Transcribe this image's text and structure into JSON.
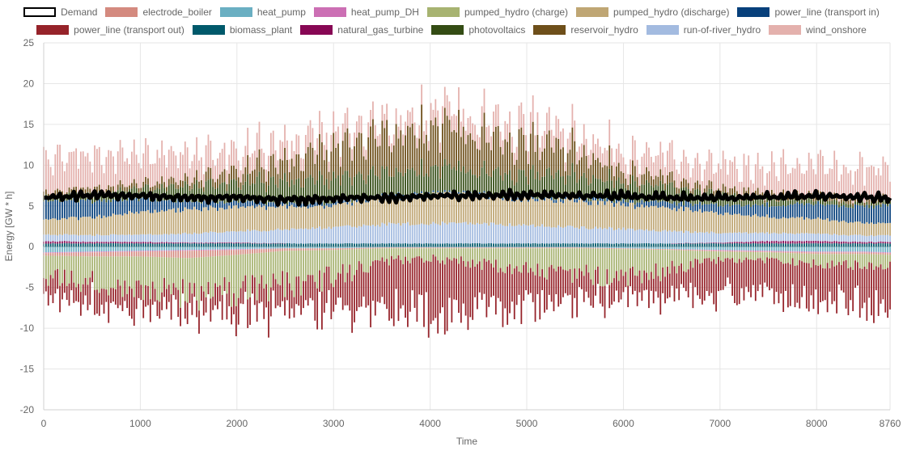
{
  "chart_data": {
    "type": "bar",
    "stacked": true,
    "xlabel": "Time",
    "ylabel": "Energy [GW * h]",
    "xlim": [
      0,
      8760
    ],
    "ylim": [
      -20,
      25
    ],
    "x_ticks": [
      "0",
      "1000",
      "2000",
      "3000",
      "4000",
      "5000",
      "6000",
      "7000",
      "8000",
      "8760"
    ],
    "y_ticks": [
      "25",
      "20",
      "15",
      "10",
      "5",
      "0",
      "-5",
      "-10",
      "-15",
      "-20"
    ],
    "grid": true,
    "legend_position": "top",
    "sample_times": [
      0,
      500,
      1000,
      1500,
      2000,
      2500,
      3000,
      3500,
      4000,
      4500,
      5000,
      5500,
      6000,
      6500,
      7000,
      7500,
      8000,
      8500,
      8760
    ],
    "demand": {
      "name": "Demand",
      "values": [
        6.0,
        6.3,
        6.2,
        6.0,
        5.9,
        5.8,
        5.9,
        6.0,
        6.2,
        6.3,
        6.4,
        6.3,
        6.2,
        6.1,
        6.0,
        6.1,
        6.2,
        6.1,
        6.0
      ]
    },
    "series": [
      {
        "name": "biomass_plant",
        "color": "#00596b",
        "values": [
          0.4,
          0.4,
          0.4,
          0.4,
          0.4,
          0.4,
          0.4,
          0.4,
          0.4,
          0.4,
          0.4,
          0.4,
          0.4,
          0.4,
          0.4,
          0.4,
          0.4,
          0.4,
          0.4
        ]
      },
      {
        "name": "natural_gas_turbine",
        "color": "#870754",
        "values": [
          0.3,
          0.2,
          0.2,
          0.1,
          0.1,
          0.0,
          0.0,
          0.0,
          0.0,
          0.0,
          0.0,
          0.0,
          0.0,
          0.0,
          0.1,
          0.3,
          0.3,
          0.2,
          0.2
        ]
      },
      {
        "name": "run-of-river_hydro",
        "color": "#a3bbe0",
        "values": [
          0.8,
          0.8,
          0.9,
          1.1,
          1.4,
          1.7,
          2.0,
          2.3,
          2.5,
          2.4,
          2.2,
          2.0,
          1.8,
          1.5,
          1.2,
          1.0,
          0.9,
          0.8,
          0.8
        ]
      },
      {
        "name": "pumped_hydro (discharge)",
        "color": "#bfa674",
        "values": [
          1.8,
          2.2,
          2.8,
          3.0,
          3.0,
          2.8,
          2.6,
          3.3,
          3.6,
          3.4,
          3.2,
          3.3,
          3.0,
          2.8,
          2.4,
          2.0,
          1.8,
          1.6,
          1.6
        ]
      },
      {
        "name": "power_line (transport in)",
        "color": "#07407b",
        "values": [
          2.4,
          2.0,
          1.6,
          1.0,
          0.7,
          0.5,
          0.4,
          0.3,
          0.2,
          0.2,
          0.3,
          0.4,
          0.5,
          0.7,
          1.0,
          1.4,
          1.8,
          2.0,
          2.2
        ]
      },
      {
        "name": "photovoltaics",
        "color": "#344c14",
        "values": [
          0.4,
          0.8,
          1.2,
          1.8,
          2.2,
          2.6,
          2.8,
          2.8,
          2.9,
          2.8,
          2.7,
          2.6,
          2.2,
          1.8,
          1.3,
          0.8,
          0.5,
          0.4,
          0.4
        ]
      },
      {
        "name": "reservoir_hydro",
        "color": "#6e4f1a",
        "values": [
          0.6,
          0.6,
          0.6,
          0.8,
          1.4,
          2.4,
          3.6,
          4.6,
          4.8,
          4.5,
          3.8,
          3.0,
          1.5,
          0.9,
          0.7,
          0.6,
          0.6,
          0.6,
          0.6
        ]
      },
      {
        "name": "wind_onshore",
        "color": "#e4b1ad",
        "values": [
          4.5,
          3.8,
          3.4,
          3.0,
          2.4,
          2.2,
          2.0,
          1.6,
          1.8,
          2.2,
          2.3,
          2.0,
          2.2,
          2.6,
          2.8,
          3.2,
          3.6,
          3.8,
          3.6
        ]
      },
      {
        "name": "heat_pump",
        "color": "#6aafc2",
        "values": [
          -0.7,
          -0.6,
          -0.5,
          -0.4,
          -0.3,
          -0.2,
          -0.2,
          -0.1,
          -0.1,
          -0.1,
          -0.1,
          -0.1,
          -0.2,
          -0.3,
          -0.4,
          -0.5,
          -0.6,
          -0.6,
          -0.7
        ]
      },
      {
        "name": "heat_pump_DH",
        "color": "#cc6fb4",
        "values": [
          -0.1,
          -0.1,
          -0.1,
          -0.1,
          -0.1,
          -0.0,
          -0.0,
          -0.0,
          -0.0,
          -0.0,
          -0.0,
          -0.0,
          -0.0,
          -0.0,
          -0.1,
          -0.1,
          -0.1,
          -0.1,
          -0.1
        ]
      },
      {
        "name": "electrode_boiler",
        "color": "#d48a7f",
        "values": [
          -0.3,
          -0.5,
          -0.6,
          -0.9,
          -0.6,
          -0.3,
          -0.2,
          -0.1,
          -0.1,
          -0.1,
          -0.1,
          -0.1,
          -0.1,
          -0.1,
          -0.1,
          -0.1,
          -0.2,
          -0.2,
          -0.2
        ]
      },
      {
        "name": "pumped_hydro (charge)",
        "color": "#a7b371",
        "values": [
          -2.6,
          -3.2,
          -3.8,
          -4.6,
          -4.4,
          -4.2,
          -3.4,
          -1.6,
          -1.2,
          -1.8,
          -2.6,
          -3.0,
          -3.6,
          -2.4,
          -1.0,
          -1.0,
          -1.2,
          -1.4,
          -1.5
        ]
      },
      {
        "name": "power_line (transport out)",
        "color": "#96232a",
        "values": [
          -2.2,
          -2.4,
          -2.6,
          -2.2,
          -2.6,
          -3.4,
          -3.6,
          -6.2,
          -7.0,
          -6.2,
          -4.6,
          -3.4,
          -2.6,
          -3.0,
          -4.2,
          -4.2,
          -4.4,
          -4.6,
          -4.4
        ]
      }
    ]
  }
}
